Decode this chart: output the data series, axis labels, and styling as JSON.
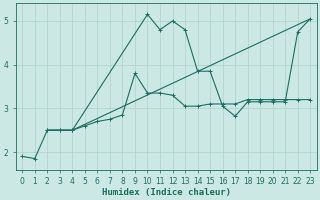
{
  "xlabel": "Humidex (Indice chaleur)",
  "xlim": [
    -0.5,
    23.5
  ],
  "ylim": [
    1.6,
    5.4
  ],
  "yticks": [
    2,
    3,
    4,
    5
  ],
  "xticks": [
    0,
    1,
    2,
    3,
    4,
    5,
    6,
    7,
    8,
    9,
    10,
    11,
    12,
    13,
    14,
    15,
    16,
    17,
    18,
    19,
    20,
    21,
    22,
    23
  ],
  "bg_color": "#cce8e4",
  "line_color": "#1a6e62",
  "grid_color": "#aed0ca",
  "line1_x": [
    0,
    1,
    2,
    3,
    4,
    10,
    11,
    12,
    13,
    14,
    15,
    16,
    17,
    18,
    19,
    20,
    21,
    22,
    23
  ],
  "line1_y": [
    1.9,
    1.85,
    2.5,
    2.5,
    2.5,
    5.15,
    4.8,
    5.0,
    4.8,
    3.85,
    3.85,
    3.05,
    2.82,
    3.15,
    3.15,
    3.15,
    3.15,
    4.75,
    5.05
  ],
  "line2_x": [
    2,
    3,
    4,
    5,
    6,
    7,
    8,
    9,
    10,
    11,
    12,
    13,
    14,
    15,
    16,
    17,
    18,
    19,
    20,
    21,
    22,
    23
  ],
  "line2_y": [
    2.5,
    2.5,
    2.5,
    2.6,
    2.7,
    2.75,
    2.85,
    3.8,
    3.35,
    3.35,
    3.3,
    3.05,
    3.05,
    3.1,
    3.1,
    3.1,
    3.2,
    3.2,
    3.2,
    3.2,
    3.2,
    3.2
  ],
  "line3_x": [
    2,
    4,
    23
  ],
  "line3_y": [
    2.5,
    2.5,
    5.05
  ],
  "marker_size": 2.5,
  "linewidth": 0.8
}
